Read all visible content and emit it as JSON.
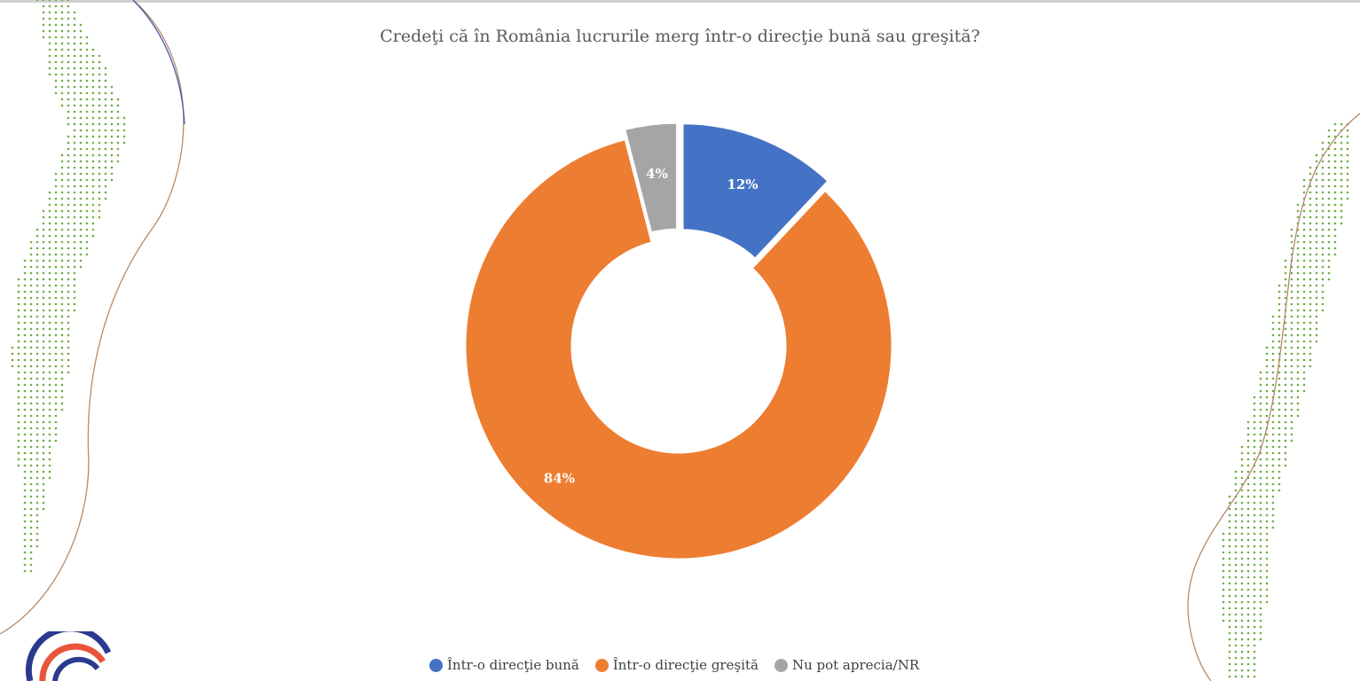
{
  "colors": {
    "blue": "#4472c4",
    "orange": "#ed7d31",
    "gray": "#a5a5a5",
    "dots": "#70ad47"
  },
  "chart_data": {
    "type": "pie",
    "donut": true,
    "title": "Credeţi că în România lucrurile merg într-o direcţie bună sau greşită?",
    "legend_position": "bottom",
    "slices": [
      {
        "label": "Într-o direcţie bună",
        "value": 12,
        "display": "12%",
        "color": "#4472c4",
        "exploded": true
      },
      {
        "label": "Într-o direcţie greşită",
        "value": 84,
        "display": "84%",
        "color": "#ed7d31",
        "exploded": false
      },
      {
        "label": "Nu pot aprecia/NR",
        "value": 4,
        "display": "4%",
        "color": "#a5a5a5",
        "exploded": true
      }
    ]
  }
}
